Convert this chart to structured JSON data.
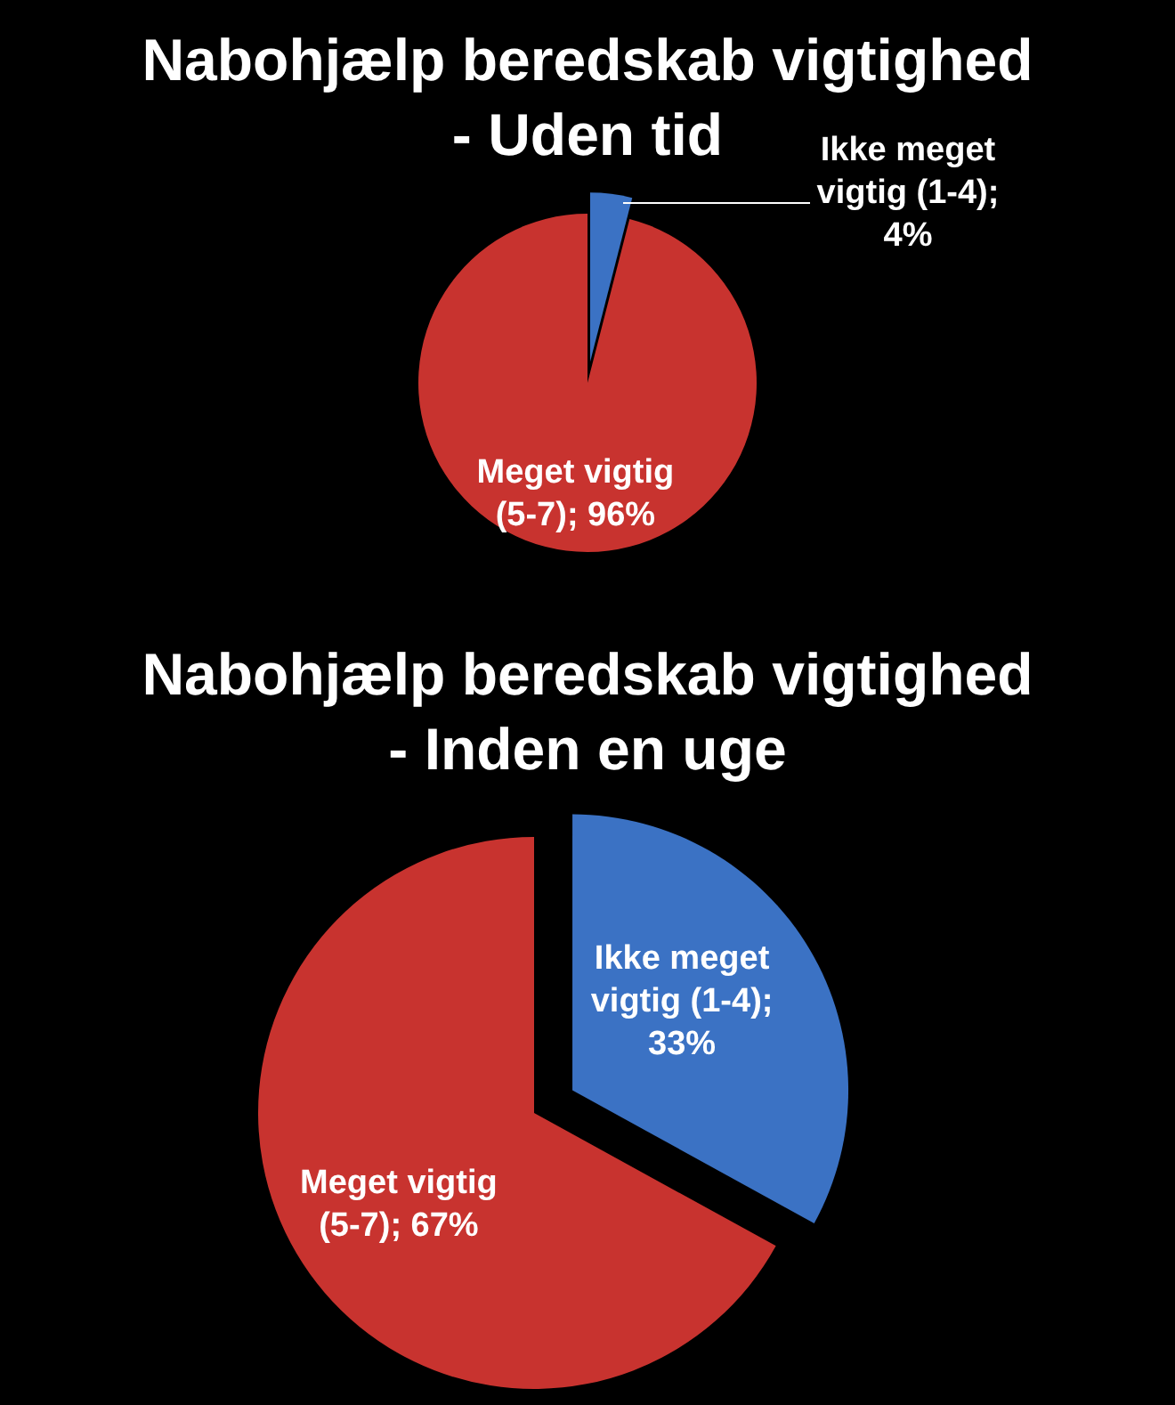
{
  "chart_data": [
    {
      "type": "pie",
      "title": "Nabohjælp beredskab vigtighed - Uden tid",
      "categories": [
        "Ikke meget vigtig (1-4)",
        "Meget vigtig (5-7)"
      ],
      "values": [
        4,
        96
      ],
      "colors": [
        "#3b72c4",
        "#c8332f"
      ],
      "value_labels": [
        "; 4%",
        "; 96%"
      ]
    },
    {
      "type": "pie",
      "title": "Nabohjælp beredskab vigtighed - Inden en uge",
      "categories": [
        "Ikke meget vigtig (1-4)",
        "Meget vigtig (5-7)"
      ],
      "values": [
        33,
        67
      ],
      "colors": [
        "#3b72c4",
        "#c8332f"
      ],
      "value_labels": [
        "; 33%",
        "; 67%"
      ]
    }
  ]
}
